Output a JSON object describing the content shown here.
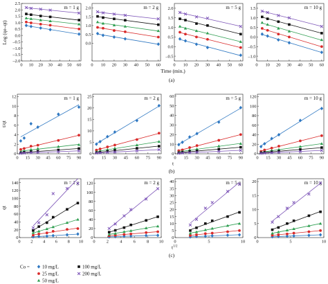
{
  "rows": [
    {
      "caption": "(a)",
      "xlabel": "Time (min.)",
      "ylabel": "Log (qe–qt)"
    },
    {
      "caption": "(b)",
      "xlabel": "t",
      "ylabel": "t/qt"
    },
    {
      "caption": "(c)",
      "xlabel": "t",
      "xlabel_sup": "1/2",
      "ylabel": "qt"
    }
  ],
  "legend": {
    "label": "Co =",
    "entries": [
      {
        "name": "10 mg/L",
        "marker": "diamond-icon",
        "color": "#2f78c2"
      },
      {
        "name": "25 mg/L",
        "marker": "circle-icon",
        "color": "#d92a2a"
      },
      {
        "name": "50 mg/L",
        "marker": "triangle-icon",
        "color": "#2e9e50"
      },
      {
        "name": "100 mg/L",
        "marker": "square-icon",
        "color": "#111111"
      },
      {
        "name": "200 mg/L",
        "marker": "cross-icon",
        "color": "#7d55b8"
      }
    ]
  },
  "chart_data": [
    {
      "type": "scatter",
      "title": "m = 1 g",
      "xlim": [
        0,
        62
      ],
      "ylim": [
        -2.0,
        2.5
      ],
      "xticks": [
        "0",
        "10",
        "20",
        "30",
        "40",
        "50",
        "60"
      ],
      "yticks": [
        "2.5",
        "2.0",
        "1.5",
        "1.0",
        "0.5",
        "0.0",
        "–0.5",
        "–1.0",
        "–1.5",
        "–2.0"
      ],
      "x": [
        5,
        10,
        20,
        30,
        60
      ],
      "series": [
        {
          "name": "10 mg/L",
          "values": [
            0.78,
            0.7,
            0.58,
            0.45,
            0.1
          ]
        },
        {
          "name": "25 mg/L",
          "values": [
            1.05,
            0.98,
            0.88,
            0.8,
            0.5
          ]
        },
        {
          "name": "50 mg/L",
          "values": [
            1.35,
            1.3,
            1.2,
            1.12,
            0.88
          ]
        },
        {
          "name": "100 mg/L",
          "values": [
            1.68,
            1.62,
            1.52,
            1.45,
            1.2
          ]
        },
        {
          "name": "200 mg/L",
          "values": [
            2.18,
            2.12,
            2.05,
            1.98,
            1.75
          ]
        }
      ]
    },
    {
      "type": "scatter",
      "title": "m = 2 g",
      "xlim": [
        0,
        62
      ],
      "ylim": [
        -1.0,
        2.25
      ],
      "xticks": [
        "0",
        "10",
        "20",
        "30",
        "40",
        "50",
        "60"
      ],
      "yticks": [
        "2.0",
        "1.5",
        "1.0",
        "0.5",
        "0.0"
      ],
      "x": [
        5,
        10,
        20,
        30,
        60
      ],
      "series": [
        {
          "name": "10 mg/L",
          "values": [
            0.55,
            0.45,
            0.35,
            0.25,
            -0.05
          ]
        },
        {
          "name": "25 mg/L",
          "values": [
            0.9,
            0.85,
            0.72,
            0.65,
            0.35
          ]
        },
        {
          "name": "50 mg/L",
          "values": [
            1.2,
            1.12,
            1.02,
            0.95,
            0.7
          ]
        },
        {
          "name": "100 mg/L",
          "values": [
            1.52,
            1.45,
            1.38,
            1.3,
            1.05
          ]
        },
        {
          "name": "200 mg/L",
          "values": [
            1.78,
            1.72,
            1.65,
            1.58,
            1.38
          ]
        }
      ]
    },
    {
      "type": "scatter",
      "title": "m = 5 g",
      "xlim": [
        0,
        62
      ],
      "ylim": [
        -0.75,
        2.25
      ],
      "xticks": [
        "0",
        "10",
        "20",
        "30",
        "40",
        "50",
        "60"
      ],
      "yticks": [
        "2.0",
        "1.5",
        "1.0",
        "0.5",
        "0.0",
        "–0.5"
      ],
      "x": [
        5,
        10,
        20,
        30,
        60
      ],
      "series": [
        {
          "name": "10 mg/L",
          "values": [
            0.4,
            0.3,
            0.12,
            -0.05,
            -0.45
          ]
        },
        {
          "name": "25 mg/L",
          "values": [
            0.75,
            0.65,
            0.5,
            0.38,
            -0.05
          ]
        },
        {
          "name": "50 mg/L",
          "values": [
            1.05,
            0.95,
            0.82,
            0.7,
            0.25
          ]
        },
        {
          "name": "100 mg/L",
          "values": [
            1.45,
            1.38,
            1.2,
            1.1,
            0.65
          ]
        },
        {
          "name": "200 mg/L",
          "values": [
            1.78,
            1.7,
            1.55,
            1.48,
            1.05
          ]
        }
      ]
    },
    {
      "type": "scatter",
      "title": "m = 10 g",
      "xlim": [
        0,
        62
      ],
      "ylim": [
        -1.25,
        1.75
      ],
      "xticks": [
        "0",
        "10",
        "20",
        "30",
        "40",
        "50",
        "60"
      ],
      "yticks": [
        "1.5",
        "1.0",
        "0.5",
        "0.0",
        "–0.5",
        "–1.0"
      ],
      "x": [
        5,
        10,
        20,
        30,
        60
      ],
      "series": [
        {
          "name": "10 mg/L",
          "values": [
            0.15,
            0.05,
            -0.15,
            -0.3,
            -0.8
          ]
        },
        {
          "name": "25 mg/L",
          "values": [
            0.45,
            0.35,
            0.15,
            0.0,
            -0.5
          ]
        },
        {
          "name": "50 mg/L",
          "values": [
            0.75,
            0.65,
            0.45,
            0.3,
            -0.15
          ]
        },
        {
          "name": "100 mg/L",
          "values": [
            1.05,
            0.95,
            0.8,
            0.65,
            0.2
          ]
        },
        {
          "name": "200 mg/L",
          "values": [
            1.35,
            1.28,
            1.12,
            1.0,
            0.55
          ]
        }
      ]
    },
    {
      "type": "scatter",
      "title": "m = 1 g",
      "xlim": [
        0,
        93
      ],
      "ylim": [
        0,
        12.5
      ],
      "xticks": [
        "0",
        "15",
        "30",
        "45",
        "60",
        "75",
        "90"
      ],
      "yticks": [
        "12",
        "10",
        "8",
        "6",
        "4",
        "2",
        "0"
      ],
      "x": [
        5,
        10,
        20,
        30,
        60,
        90
      ],
      "series": [
        {
          "name": "10 mg/L",
          "values": [
            2.7,
            3.3,
            6.3,
            5.6,
            8.3,
            9.8
          ]
        },
        {
          "name": "25 mg/L",
          "values": [
            0.9,
            1.1,
            1.6,
            1.8,
            2.8,
            3.9
          ]
        },
        {
          "name": "50 mg/L",
          "values": [
            0.4,
            0.6,
            0.9,
            1.1,
            1.5,
            1.9
          ]
        },
        {
          "name": "100 mg/L",
          "values": [
            0.2,
            0.3,
            0.45,
            0.55,
            0.8,
            1.1
          ]
        },
        {
          "name": "200 mg/L",
          "values": [
            0.1,
            0.15,
            0.25,
            0.3,
            0.45,
            0.6
          ]
        }
      ]
    },
    {
      "type": "scatter",
      "title": "m = 2 g",
      "xlim": [
        0,
        93
      ],
      "ylim": [
        0,
        26
      ],
      "xticks": [
        "0",
        "15",
        "30",
        "45",
        "60",
        "75",
        "90"
      ],
      "yticks": [
        "25",
        "20",
        "15",
        "10",
        "5",
        "0"
      ],
      "x": [
        5,
        10,
        20,
        30,
        60,
        90
      ],
      "series": [
        {
          "name": "10 mg/L",
          "values": [
            4.2,
            5.3,
            7.5,
            9.5,
            14.5,
            21.0
          ]
        },
        {
          "name": "25 mg/L",
          "values": [
            1.6,
            2.1,
            3.0,
            3.8,
            6.2,
            9.0
          ]
        },
        {
          "name": "50 mg/L",
          "values": [
            0.9,
            1.2,
            1.8,
            2.4,
            3.8,
            5.3
          ]
        },
        {
          "name": "100 mg/L",
          "values": [
            0.5,
            0.7,
            1.1,
            1.5,
            2.4,
            3.3
          ]
        },
        {
          "name": "200 mg/L",
          "values": [
            0.3,
            0.4,
            0.6,
            0.8,
            1.3,
            1.8
          ]
        }
      ]
    },
    {
      "type": "scatter",
      "title": "m = 5 g",
      "xlim": [
        0,
        93
      ],
      "ylim": [
        0,
        62
      ],
      "xticks": [
        "0",
        "15",
        "30",
        "45",
        "60",
        "75",
        "90"
      ],
      "yticks": [
        "60",
        "50",
        "40",
        "30",
        "20",
        "10",
        "0"
      ],
      "x": [
        5,
        10,
        20,
        30,
        60,
        90
      ],
      "series": [
        {
          "name": "10 mg/L",
          "values": [
            9.5,
            12.0,
            17.5,
            21.0,
            33.0,
            48.0
          ]
        },
        {
          "name": "25 mg/L",
          "values": [
            3.2,
            4.0,
            6.5,
            8.5,
            14.0,
            20.0
          ]
        },
        {
          "name": "50 mg/L",
          "values": [
            1.8,
            2.5,
            4.0,
            5.0,
            8.0,
            10.5
          ]
        },
        {
          "name": "100 mg/L",
          "values": [
            1.0,
            1.5,
            2.4,
            3.0,
            4.8,
            6.8
          ]
        },
        {
          "name": "200 mg/L",
          "values": [
            0.5,
            0.8,
            1.2,
            1.6,
            2.6,
            3.5
          ]
        }
      ]
    },
    {
      "type": "scatter",
      "title": "m = 10 g",
      "xlim": [
        0,
        93
      ],
      "ylim": [
        0,
        125
      ],
      "xticks": [
        "0",
        "15",
        "30",
        "45",
        "60",
        "75",
        "90"
      ],
      "yticks": [
        "120",
        "100",
        "80",
        "60",
        "40",
        "20",
        "0"
      ],
      "x": [
        5,
        10,
        20,
        30,
        60,
        90
      ],
      "series": [
        {
          "name": "10 mg/L",
          "values": [
            15,
            21,
            32,
            40,
            70,
            95
          ]
        },
        {
          "name": "25 mg/L",
          "values": [
            5,
            8,
            12,
            16,
            27,
            38
          ]
        },
        {
          "name": "50 mg/L",
          "values": [
            3,
            4,
            7,
            9,
            15,
            21
          ]
        },
        {
          "name": "100 mg/L",
          "values": [
            2,
            3,
            4,
            5.5,
            9,
            13
          ]
        },
        {
          "name": "200 mg/L",
          "values": [
            1,
            1.5,
            2.2,
            3,
            5,
            7
          ]
        }
      ]
    },
    {
      "type": "scatter",
      "title": "m = 1 g",
      "xlim": [
        0,
        10
      ],
      "ylim": [
        0,
        150
      ],
      "xticks": [
        "0",
        "2",
        "4",
        "6",
        "8",
        "10"
      ],
      "yticks": [
        "140",
        "120",
        "100",
        "80",
        "60",
        "40",
        "20",
        "0"
      ],
      "x": [
        2.24,
        3.16,
        4.47,
        5.48,
        7.75,
        9.49
      ],
      "series": [
        {
          "name": "10 mg/L",
          "values": [
            2,
            3,
            3.5,
            5,
            7,
            9
          ]
        },
        {
          "name": "25 mg/L",
          "values": [
            6,
            9,
            12,
            16,
            21,
            23
          ]
        },
        {
          "name": "50 mg/L",
          "values": [
            12,
            16,
            22,
            27,
            38,
            46
          ]
        },
        {
          "name": "100 mg/L",
          "values": [
            18,
            28,
            38,
            52,
            72,
            88
          ]
        },
        {
          "name": "200 mg/L",
          "values": [
            25,
            38,
            58,
            112,
            125,
            138
          ]
        }
      ]
    },
    {
      "type": "scatter",
      "title": "m = 2 g",
      "xlim": [
        0,
        10
      ],
      "ylim": [
        0,
        130
      ],
      "xticks": [
        "0",
        "2",
        "4",
        "6",
        "8",
        "10"
      ],
      "yticks": [
        "120",
        "100",
        "80",
        "60",
        "40",
        "20",
        "0"
      ],
      "x": [
        2.24,
        3.16,
        4.47,
        5.48,
        7.75,
        9.49
      ],
      "series": [
        {
          "name": "10 mg/L",
          "values": [
            1.5,
            2,
            3,
            3.5,
            4.5,
            5
          ]
        },
        {
          "name": "25 mg/L",
          "values": [
            4,
            5,
            7,
            8,
            11,
            13
          ]
        },
        {
          "name": "50 mg/L",
          "values": [
            7,
            9,
            13,
            15,
            21,
            25
          ]
        },
        {
          "name": "100 mg/L",
          "values": [
            12,
            16,
            22,
            28,
            38,
            46
          ]
        },
        {
          "name": "200 mg/L",
          "values": [
            20,
            30,
            48,
            62,
            85,
            108
          ]
        }
      ]
    },
    {
      "type": "scatter",
      "title": "m = 5 g",
      "xlim": [
        0,
        10
      ],
      "ylim": [
        0,
        42
      ],
      "xticks": [
        "0",
        "5",
        "10"
      ],
      "yticks": [
        "40",
        "35",
        "30",
        "25",
        "20",
        "15",
        "10",
        "5",
        "0"
      ],
      "x": [
        2.24,
        3.16,
        4.47,
        5.48,
        7.75,
        9.49
      ],
      "series": [
        {
          "name": "10 mg/L",
          "values": [
            0.5,
            0.8,
            1.0,
            1.3,
            1.7,
            2.0
          ]
        },
        {
          "name": "25 mg/L",
          "values": [
            1.5,
            2.0,
            2.8,
            3.2,
            4.2,
            5.0
          ]
        },
        {
          "name": "50 mg/L",
          "values": [
            3,
            4,
            5.5,
            6.5,
            8.5,
            10
          ]
        },
        {
          "name": "100 mg/L",
          "values": [
            5,
            7,
            10,
            12,
            15,
            18
          ]
        },
        {
          "name": "200 mg/L",
          "values": [
            9,
            13,
            21,
            25,
            33,
            38
          ]
        }
      ]
    },
    {
      "type": "scatter",
      "title": "m = 10 g",
      "xlim": [
        0,
        10
      ],
      "ylim": [
        0,
        21
      ],
      "xticks": [
        "0",
        "5",
        "10"
      ],
      "yticks": [
        "20",
        "15",
        "10",
        "5",
        "0"
      ],
      "x": [
        2.24,
        3.16,
        4.47,
        5.48,
        7.75,
        9.49
      ],
      "series": [
        {
          "name": "10 mg/L",
          "values": [
            0.3,
            0.4,
            0.5,
            0.6,
            0.8,
            1.0
          ]
        },
        {
          "name": "25 mg/L",
          "values": [
            0.8,
            1.0,
            1.3,
            1.6,
            2.1,
            2.5
          ]
        },
        {
          "name": "50 mg/L",
          "values": [
            1.5,
            2.0,
            2.6,
            3.1,
            4.2,
            5.0
          ]
        },
        {
          "name": "100 mg/L",
          "values": [
            2.8,
            3.6,
            5.0,
            6.0,
            7.8,
            9.2
          ]
        },
        {
          "name": "200 mg/L",
          "values": [
            5.5,
            7.5,
            10.5,
            12.5,
            15.5,
            19.5
          ]
        }
      ]
    }
  ]
}
